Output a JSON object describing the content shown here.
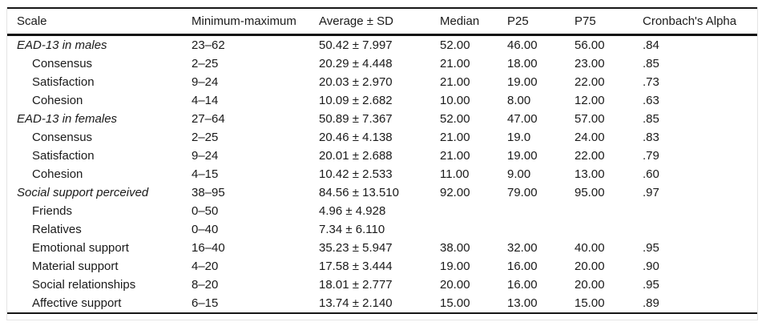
{
  "table": {
    "columns": [
      "Scale",
      "Minimum-maximum",
      "Average ± SD",
      "Median",
      "P25",
      "P75",
      "Cronbach's Alpha"
    ],
    "rows": [
      {
        "label": "EAD-13 in males",
        "group": true,
        "min_max": "23–62",
        "avg_sd": "50.42 ± 7.997",
        "median": "52.00",
        "p25": "46.00",
        "p75": "56.00",
        "alpha": ".84"
      },
      {
        "label": "Consensus",
        "group": false,
        "min_max": "2–25",
        "avg_sd": "20.29 ± 4.448",
        "median": "21.00",
        "p25": "18.00",
        "p75": "23.00",
        "alpha": ".85"
      },
      {
        "label": "Satisfaction",
        "group": false,
        "min_max": "9–24",
        "avg_sd": "20.03 ± 2.970",
        "median": "21.00",
        "p25": "19.00",
        "p75": "22.00",
        "alpha": ".73"
      },
      {
        "label": "Cohesion",
        "group": false,
        "min_max": "4–14",
        "avg_sd": "10.09 ± 2.682",
        "median": "10.00",
        "p25": "8.00",
        "p75": "12.00",
        "alpha": ".63"
      },
      {
        "label": "EAD-13 in females",
        "group": true,
        "min_max": "27–64",
        "avg_sd": "50.89 ± 7.367",
        "median": "52.00",
        "p25": "47.00",
        "p75": "57.00",
        "alpha": ".85"
      },
      {
        "label": "Consensus",
        "group": false,
        "min_max": "2–25",
        "avg_sd": "20.46 ± 4.138",
        "median": "21.00",
        "p25": "19.0",
        "p75": "24.00",
        "alpha": ".83"
      },
      {
        "label": "Satisfaction",
        "group": false,
        "min_max": "9–24",
        "avg_sd": "20.01 ± 2.688",
        "median": "21.00",
        "p25": "19.00",
        "p75": "22.00",
        "alpha": ".79"
      },
      {
        "label": "Cohesion",
        "group": false,
        "min_max": "4–15",
        "avg_sd": "10.42 ± 2.533",
        "median": "11.00",
        "p25": "9.00",
        "p75": "13.00",
        "alpha": ".60"
      },
      {
        "label": "Social support perceived",
        "group": true,
        "min_max": "38–95",
        "avg_sd": "84.56 ± 13.510",
        "median": "92.00",
        "p25": "79.00",
        "p75": "95.00",
        "alpha": ".97"
      },
      {
        "label": "Friends",
        "group": false,
        "min_max": "0–50",
        "avg_sd": "4.96 ± 4.928",
        "median": "",
        "p25": "",
        "p75": "",
        "alpha": ""
      },
      {
        "label": "Relatives",
        "group": false,
        "min_max": "0–40",
        "avg_sd": "7.34 ± 6.110",
        "median": "",
        "p25": "",
        "p75": "",
        "alpha": ""
      },
      {
        "label": "Emotional support",
        "group": false,
        "min_max": "16–40",
        "avg_sd": "35.23 ± 5.947",
        "median": "38.00",
        "p25": "32.00",
        "p75": "40.00",
        "alpha": ".95"
      },
      {
        "label": "Material support",
        "group": false,
        "min_max": "4–20",
        "avg_sd": "17.58 ± 3.444",
        "median": "19.00",
        "p25": "16.00",
        "p75": "20.00",
        "alpha": ".90"
      },
      {
        "label": "Social relationships",
        "group": false,
        "min_max": "8–20",
        "avg_sd": "18.01 ± 2.777",
        "median": "20.00",
        "p25": "16.00",
        "p75": "20.00",
        "alpha": ".95"
      },
      {
        "label": "Affective support",
        "group": false,
        "min_max": "6–15",
        "avg_sd": "13.74 ± 2.140",
        "median": "15.00",
        "p25": "13.00",
        "p75": "15.00",
        "alpha": ".89"
      }
    ]
  }
}
